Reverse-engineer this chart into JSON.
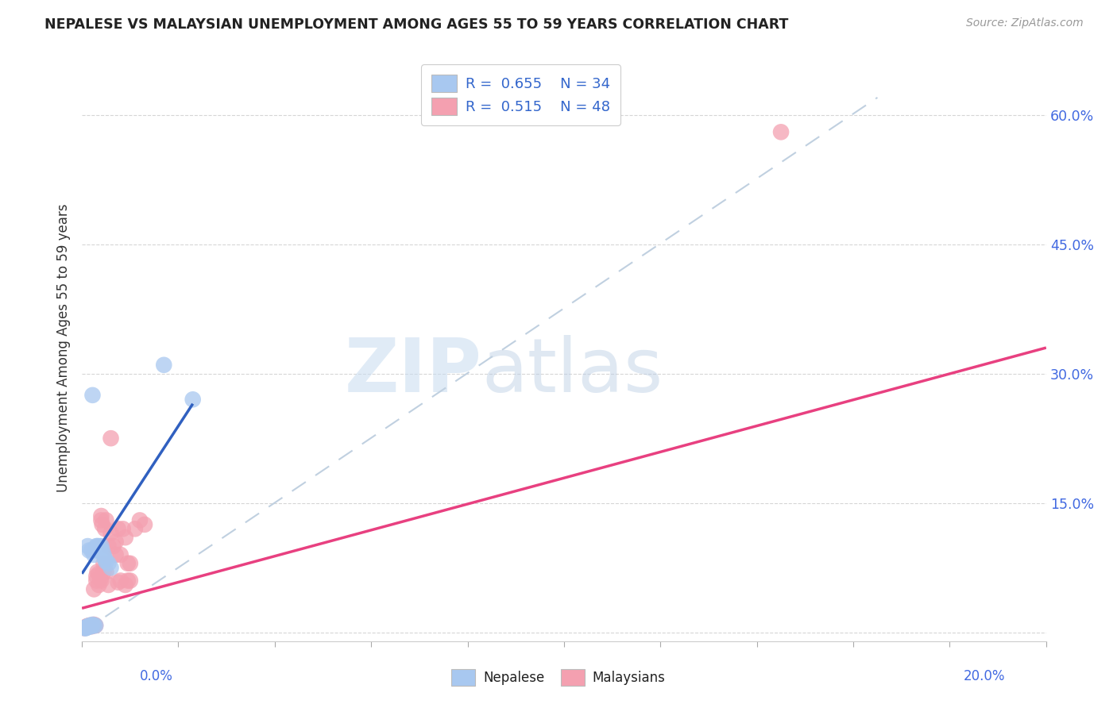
{
  "title": "NEPALESE VS MALAYSIAN UNEMPLOYMENT AMONG AGES 55 TO 59 YEARS CORRELATION CHART",
  "source": "Source: ZipAtlas.com",
  "ylabel": "Unemployment Among Ages 55 to 59 years",
  "ytick_vals": [
    0.0,
    0.15,
    0.3,
    0.45,
    0.6
  ],
  "ytick_labels": [
    "",
    "15.0%",
    "30.0%",
    "45.0%",
    "60.0%"
  ],
  "nepalese_color": "#A8C8F0",
  "malaysians_color": "#F4A0B0",
  "nepalese_line_color": "#3060C0",
  "malaysians_line_color": "#E84080",
  "dashed_line_color": "#C0D0E0",
  "nep_x": [
    0.0008,
    0.001,
    0.0012,
    0.0015,
    0.0018,
    0.002,
    0.0022,
    0.0025,
    0.0028,
    0.003,
    0.0032,
    0.0035,
    0.0038,
    0.004,
    0.0042,
    0.0045,
    0.0048,
    0.005,
    0.0055,
    0.006,
    0.0012,
    0.0015,
    0.002,
    0.0025,
    0.0005,
    0.0008,
    0.001,
    0.0013,
    0.0016,
    0.0019,
    0.003,
    0.0022,
    0.017,
    0.023
  ],
  "nep_y": [
    0.005,
    0.006,
    0.007,
    0.007,
    0.007,
    0.008,
    0.009,
    0.008,
    0.008,
    0.095,
    0.1,
    0.1,
    0.095,
    0.1,
    0.095,
    0.09,
    0.085,
    0.082,
    0.08,
    0.075,
    0.1,
    0.095,
    0.095,
    0.09,
    0.005,
    0.005,
    0.006,
    0.007,
    0.008,
    0.007,
    0.1,
    0.275,
    0.31,
    0.27
  ],
  "mal_x": [
    0.0005,
    0.0008,
    0.001,
    0.0012,
    0.0015,
    0.0018,
    0.002,
    0.0022,
    0.0025,
    0.0028,
    0.003,
    0.0032,
    0.0035,
    0.0038,
    0.004,
    0.0042,
    0.0045,
    0.0048,
    0.005,
    0.0055,
    0.006,
    0.0065,
    0.007,
    0.0075,
    0.008,
    0.0085,
    0.009,
    0.0095,
    0.01,
    0.011,
    0.012,
    0.013,
    0.006,
    0.007,
    0.008,
    0.009,
    0.01,
    0.004,
    0.0045,
    0.005,
    0.003,
    0.0035,
    0.0025,
    0.004,
    0.0055,
    0.0075,
    0.0095,
    0.145
  ],
  "mal_y": [
    0.005,
    0.006,
    0.007,
    0.007,
    0.008,
    0.008,
    0.007,
    0.008,
    0.009,
    0.008,
    0.065,
    0.07,
    0.068,
    0.062,
    0.06,
    0.125,
    0.07,
    0.12,
    0.13,
    0.1,
    0.115,
    0.1,
    0.105,
    0.12,
    0.09,
    0.12,
    0.11,
    0.08,
    0.08,
    0.12,
    0.13,
    0.125,
    0.225,
    0.09,
    0.06,
    0.055,
    0.06,
    0.135,
    0.08,
    0.07,
    0.06,
    0.055,
    0.05,
    0.13,
    0.055,
    0.058,
    0.06,
    0.58
  ],
  "nep_line_x": [
    0.0,
    0.023
  ],
  "nep_line_y": [
    0.068,
    0.265
  ],
  "mal_line_x": [
    0.0,
    0.2
  ],
  "mal_line_y": [
    0.028,
    0.33
  ],
  "dash_line_x": [
    0.0,
    0.165
  ],
  "dash_line_y": [
    0.0,
    0.62
  ],
  "xlim": [
    0.0,
    0.2
  ],
  "ylim": [
    -0.01,
    0.67
  ],
  "watermark_zip": "ZIP",
  "watermark_atlas": "atlas",
  "background_color": "#FFFFFF"
}
